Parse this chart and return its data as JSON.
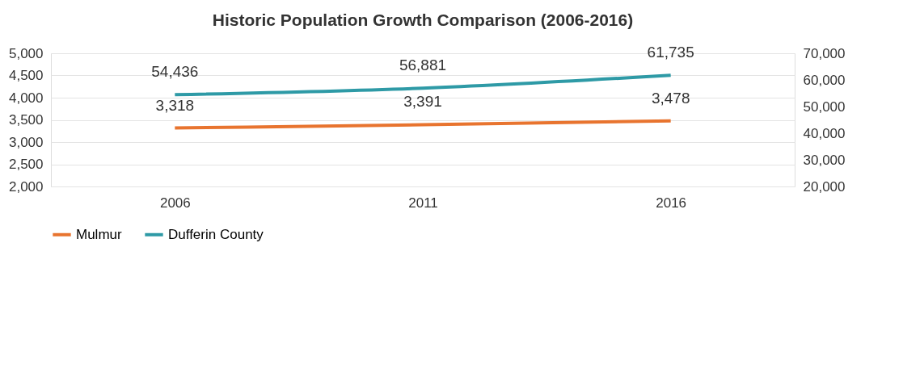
{
  "chart_data": {
    "type": "line",
    "title": "Historic Population Growth Comparison (2006-2016)",
    "categories": [
      "2006",
      "2011",
      "2016"
    ],
    "series": [
      {
        "name": "Mulmur",
        "color": "#e8742f",
        "values": [
          3318,
          3391,
          3478
        ],
        "value_labels": [
          "3,318",
          "3,391",
          "3,478"
        ]
      },
      {
        "name": "Dufferin County",
        "color": "#2e9aa6",
        "values": [
          54436,
          56881,
          61735
        ],
        "value_labels": [
          "54,436",
          "56,881",
          "61,735"
        ],
        "axis": "y2"
      }
    ],
    "ylim": [
      2000,
      5000
    ],
    "yticks": [
      {
        "value": 2000,
        "label": "2,000"
      },
      {
        "value": 2500,
        "label": "2,500"
      },
      {
        "value": 3000,
        "label": "3,000"
      },
      {
        "value": 3500,
        "label": "3,500"
      },
      {
        "value": 4000,
        "label": "4,000"
      },
      {
        "value": 4500,
        "label": "4,500"
      },
      {
        "value": 5000,
        "label": "5,000"
      }
    ],
    "y2lim": [
      20000,
      70000
    ],
    "y2ticks": [
      {
        "value": 20000,
        "label": "20,000"
      },
      {
        "value": 30000,
        "label": "30,000"
      },
      {
        "value": 40000,
        "label": "40,000"
      },
      {
        "value": 50000,
        "label": "50,000"
      },
      {
        "value": 60000,
        "label": "60,000"
      },
      {
        "value": 70000,
        "label": "70,000"
      }
    ],
    "grid": "y",
    "legend": "bottom"
  }
}
